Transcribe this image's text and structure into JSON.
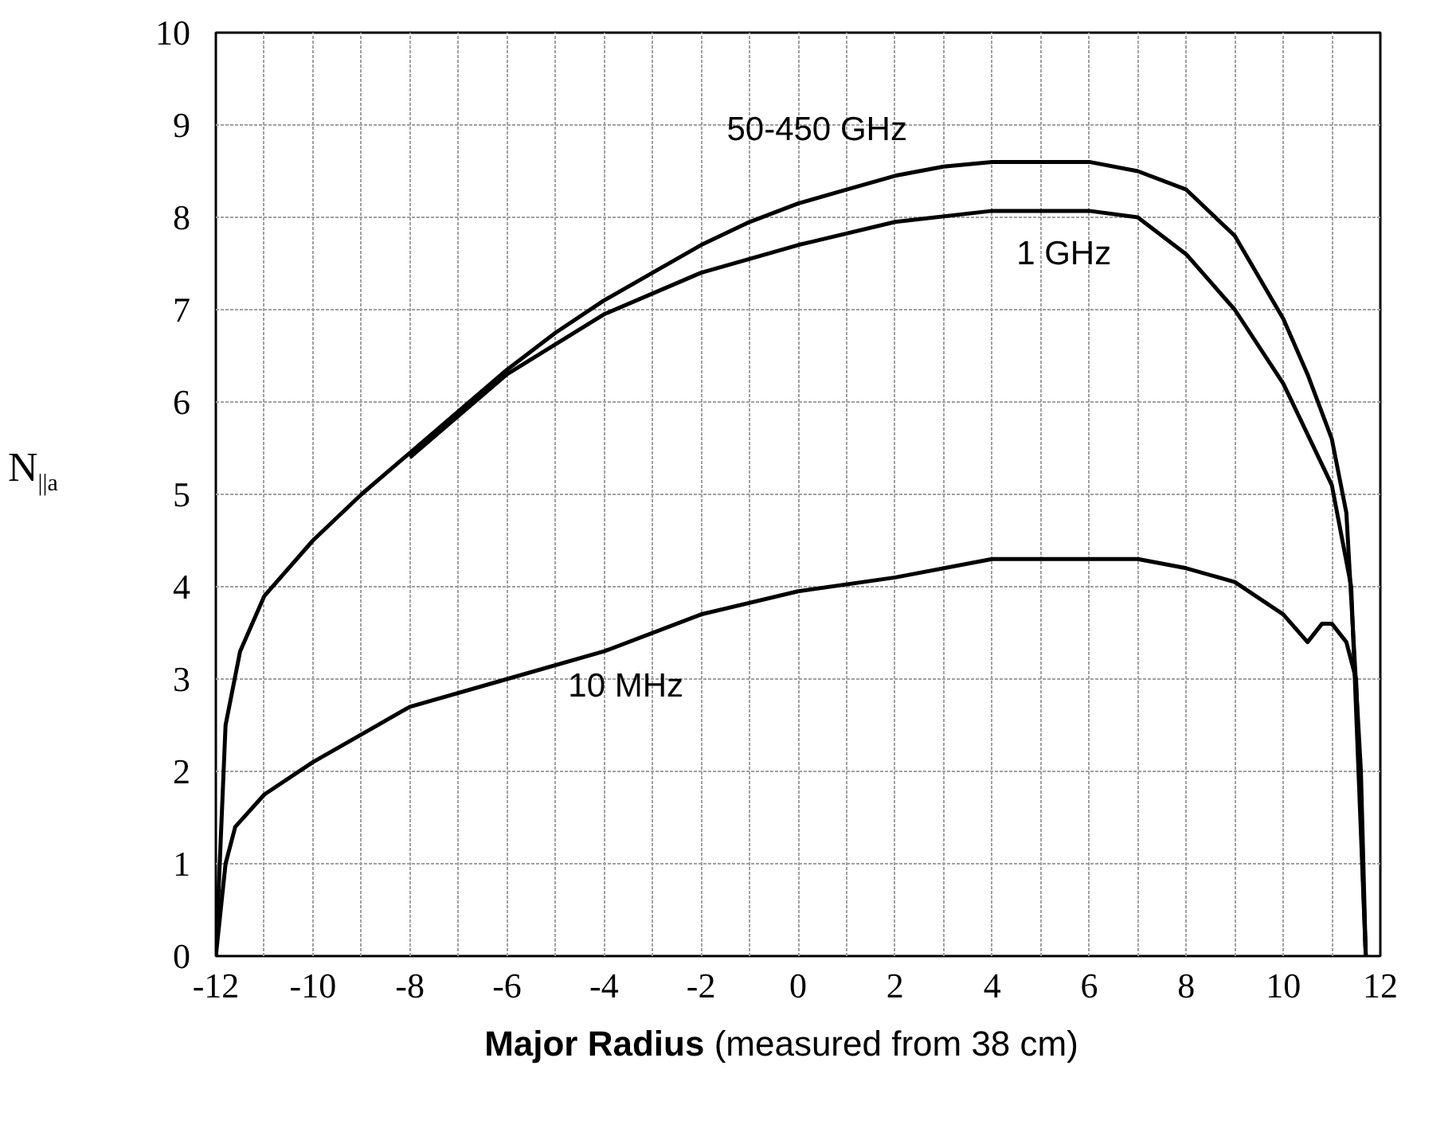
{
  "chart_data": {
    "type": "line",
    "xlabel": "Major Radius (measured from 38 cm)",
    "ylabel": "N$_{||a}$",
    "xlim": [
      -12,
      12
    ],
    "ylim": [
      0,
      10
    ],
    "xticks": [
      -12,
      {
        "value": -11,
        "label": null
      },
      -10,
      {
        "value": -9,
        "label": null
      },
      -8,
      {
        "value": -7,
        "label": null
      },
      -6,
      {
        "value": -5,
        "label": null
      },
      -4,
      {
        "value": -3,
        "label": null
      },
      -2,
      {
        "value": -1,
        "label": null
      },
      0,
      {
        "value": 1,
        "label": null
      },
      2,
      {
        "value": 3,
        "label": null
      },
      4,
      {
        "value": 5,
        "label": null
      },
      6,
      {
        "value": 7,
        "label": null
      },
      8,
      {
        "value": 9,
        "label": null
      },
      10,
      {
        "value": 11,
        "label": null
      },
      12
    ],
    "yticks": [
      0,
      1,
      2,
      3,
      4,
      5,
      6,
      7,
      8,
      9,
      10
    ],
    "grid": true,
    "marker": "none",
    "line_style": "solid",
    "series": [
      {
        "name": "50-450 GHz",
        "color": "#000000",
        "x": [
          -12,
          -11.8,
          -11.5,
          -11,
          -10,
          -9,
          -8,
          -7,
          -6,
          -5,
          -4,
          -3,
          -2,
          -1,
          0,
          1,
          2,
          3,
          4,
          5,
          6,
          7,
          8,
          9,
          10,
          10.5,
          11,
          11.3,
          11.6,
          11.7
        ],
        "values": [
          0,
          2.5,
          3.3,
          3.9,
          4.5,
          5.0,
          5.45,
          5.9,
          6.35,
          6.75,
          7.1,
          7.4,
          7.7,
          7.95,
          8.15,
          8.3,
          8.45,
          8.55,
          8.6,
          8.6,
          8.6,
          8.5,
          8.3,
          7.8,
          6.9,
          6.3,
          5.6,
          4.8,
          2,
          0
        ]
      },
      {
        "name": "1 GHz",
        "color": "#000000",
        "x": [
          -8,
          -7,
          -6,
          -4,
          -2,
          0,
          2,
          4,
          6,
          7,
          8,
          9,
          10,
          11,
          11.4,
          11.7
        ],
        "values": [
          5.4,
          5.85,
          6.3,
          6.95,
          7.4,
          7.7,
          7.95,
          8.07,
          8.07,
          8.0,
          7.6,
          7.0,
          6.2,
          5.1,
          4.0,
          0
        ]
      },
      {
        "name": "10 MHz",
        "color": "#000000",
        "x": [
          -12,
          -11.8,
          -11.6,
          -11,
          -10,
          -9,
          -8,
          -6,
          -4,
          -2,
          0,
          2,
          4,
          6,
          7,
          8,
          9,
          10,
          10.5,
          10.8,
          11,
          11.3,
          11.5,
          11.7
        ],
        "values": [
          0,
          1.0,
          1.4,
          1.75,
          2.1,
          2.4,
          2.7,
          3.0,
          3.3,
          3.7,
          3.95,
          4.1,
          4.3,
          4.3,
          4.3,
          4.2,
          4.05,
          3.7,
          3.4,
          3.6,
          3.6,
          3.4,
          3.0,
          0
        ]
      }
    ]
  }
}
